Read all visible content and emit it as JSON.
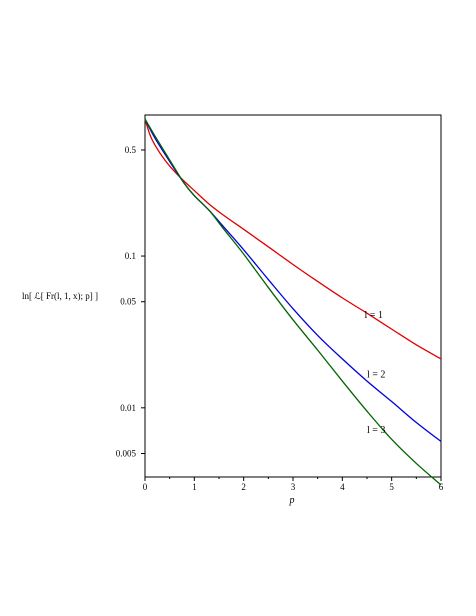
{
  "chart_data": {
    "type": "line",
    "title": "",
    "xlabel": "p",
    "ylabel": "ln[ ℒ[ Fr(l, 1, x); p] ]",
    "xlim": [
      0,
      6
    ],
    "ylim": [
      0.0035,
      0.85
    ],
    "yscale": "log",
    "grid": false,
    "legend": "none",
    "xticks": [
      0,
      1,
      2,
      3,
      4,
      5,
      6
    ],
    "yticks": [
      0.005,
      0.01,
      0.05,
      0.1,
      0.5
    ],
    "ytick_labels": [
      "0.005",
      "0.01",
      "0.05",
      "0.1",
      "0.5"
    ],
    "series": [
      {
        "color": "#e00000",
        "annotation": "l = 1",
        "x": [
          0,
          0.1,
          0.2,
          0.4,
          0.6,
          0.8,
          1.0,
          1.3,
          1.6,
          2.0,
          2.5,
          3.0,
          3.5,
          4.0,
          4.5,
          5.0,
          5.5,
          6.0
        ],
        "y": [
          0.8,
          0.63,
          0.54,
          0.43,
          0.36,
          0.31,
          0.27,
          0.22,
          0.185,
          0.15,
          0.115,
          0.088,
          0.068,
          0.053,
          0.042,
          0.033,
          0.026,
          0.021
        ]
      },
      {
        "color": "#0000e0",
        "annotation": "l = 2",
        "x": [
          0,
          0.2,
          0.5,
          0.8,
          1.0,
          1.3,
          1.6,
          2.0,
          2.5,
          3.0,
          3.5,
          4.0,
          4.5,
          5.0,
          5.5,
          6.0
        ],
        "y": [
          0.8,
          0.6,
          0.42,
          0.3,
          0.25,
          0.2,
          0.155,
          0.11,
          0.07,
          0.045,
          0.03,
          0.021,
          0.015,
          0.011,
          0.008,
          0.006
        ]
      },
      {
        "color": "#006400",
        "annotation": "l = 3",
        "x": [
          0,
          0.2,
          0.5,
          0.8,
          1.0,
          1.3,
          1.6,
          2.0,
          2.5,
          3.0,
          3.5,
          4.0,
          4.5,
          5.0,
          5.5,
          6.0
        ],
        "y": [
          0.8,
          0.62,
          0.43,
          0.3,
          0.25,
          0.2,
          0.15,
          0.103,
          0.062,
          0.038,
          0.024,
          0.015,
          0.0095,
          0.0062,
          0.0043,
          0.0031
        ]
      }
    ]
  }
}
